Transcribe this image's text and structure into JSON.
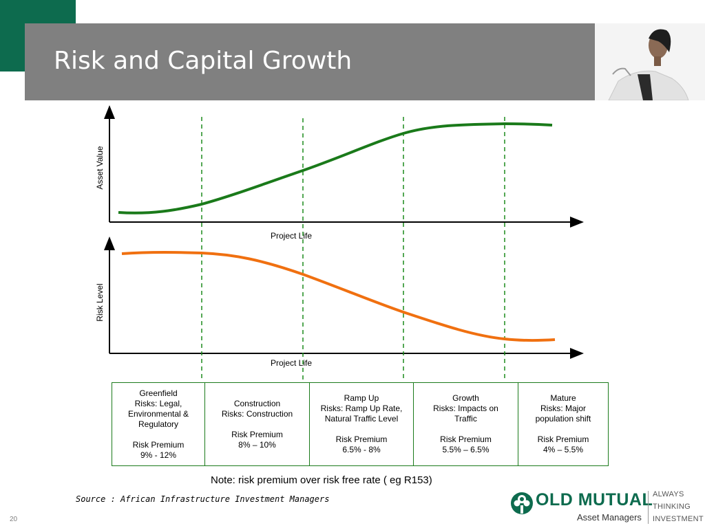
{
  "title": "Risk and Capital Growth",
  "upper_chart": {
    "ylabel": "Asset Value",
    "xlabel": "Project Life"
  },
  "lower_chart": {
    "ylabel": "Risk Level",
    "xlabel": "Project Life"
  },
  "colors": {
    "brand_green": "#0d6b4e",
    "asset_curve": "#1a7a1a",
    "risk_curve": "#f07010",
    "title_bar": "#808080"
  },
  "stages": [
    {
      "lines": [
        "Greenfield",
        "Risks: Legal,",
        "Environmental &",
        "Regulatory"
      ],
      "premium_label": "Risk Premium",
      "premium": "9% - 12%"
    },
    {
      "lines": [
        "Construction",
        "Risks: Construction"
      ],
      "premium_label": "Risk Premium",
      "premium": "8% – 10%"
    },
    {
      "lines": [
        "Ramp Up",
        "Risks: Ramp Up Rate,",
        "Natural Traffic Level"
      ],
      "premium_label": "Risk Premium",
      "premium": "6.5% - 8%"
    },
    {
      "lines": [
        "Growth",
        "Risks: Impacts on",
        "Traffic"
      ],
      "premium_label": "Risk Premium",
      "premium": "5.5% – 6.5%"
    },
    {
      "lines": [
        "Mature",
        "Risks: Major",
        "population shift"
      ],
      "premium_label": "Risk Premium",
      "premium": "4% – 5.5%"
    }
  ],
  "note": "Note: risk premium over risk free rate ( eg R153)",
  "source": "Source : African Infrastructure Investment Managers",
  "page_number": "20",
  "logo": {
    "name": "OLD MUTUAL",
    "sub": "Asset Managers",
    "tagline": [
      "ALWAYS",
      "THINKING",
      "INVESTMENT"
    ]
  }
}
